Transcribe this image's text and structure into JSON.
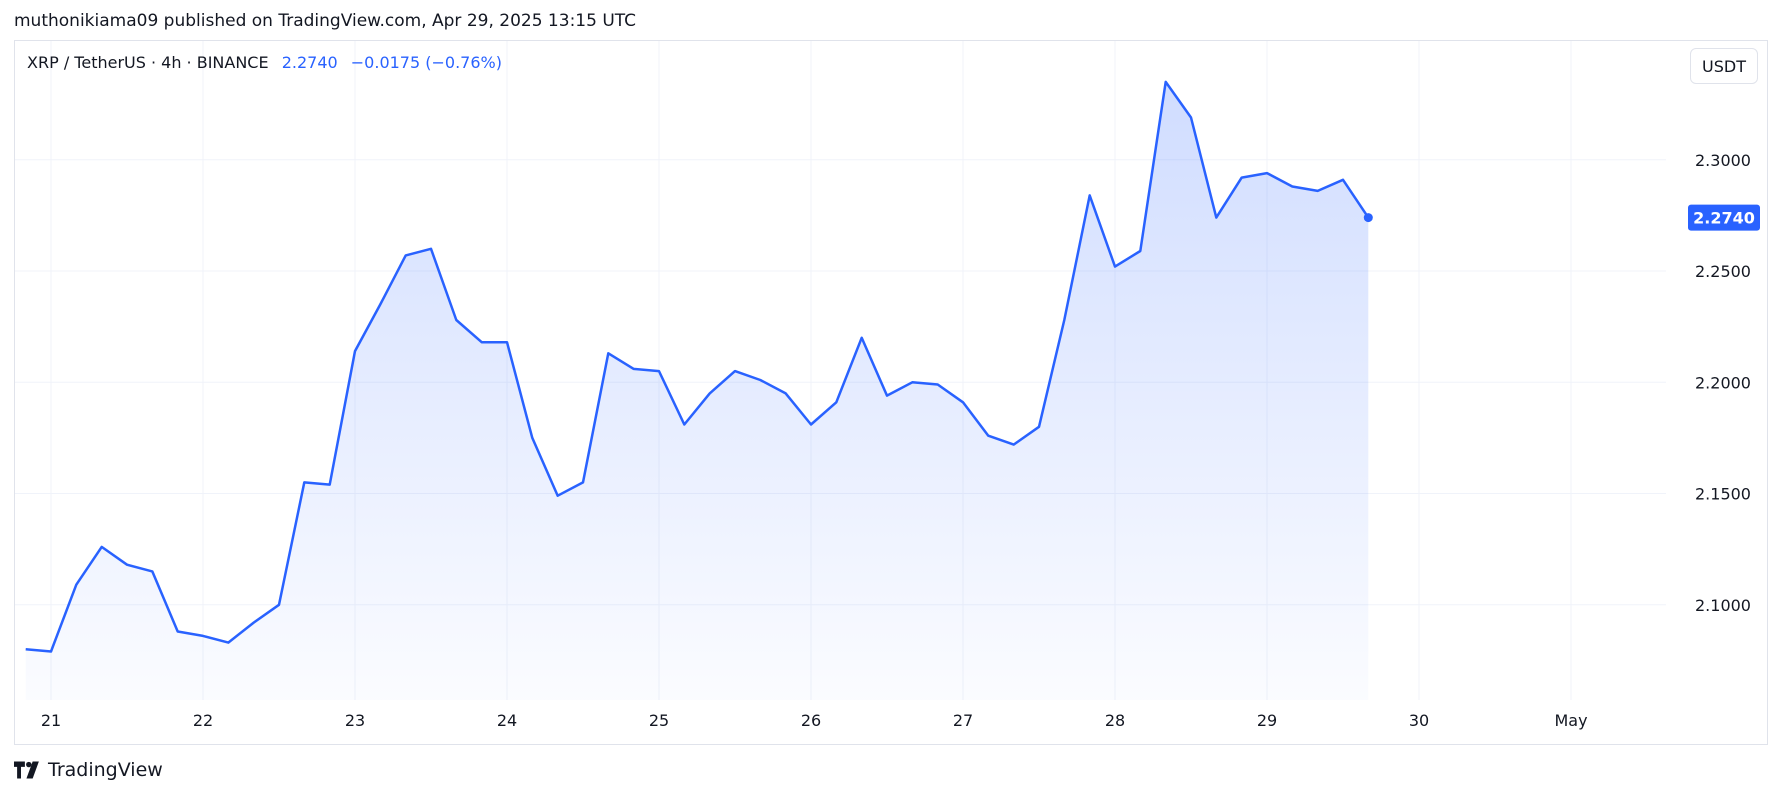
{
  "header": {
    "published": "muthonikiama09 published on TradingView.com, Apr 29, 2025 13:15 UTC"
  },
  "legend": {
    "symbol": "XRP / TetherUS · 4h · BINANCE",
    "price": "2.2740",
    "change": "−0.0175 (−0.76%)"
  },
  "unit_button": "USDT",
  "footer": {
    "brand": "TradingView"
  },
  "colors": {
    "line": "#2962ff",
    "grid": "#f0f3fa",
    "text": "#131722",
    "badge_bg": "#2962ff"
  },
  "chart_data": {
    "type": "area",
    "title": "",
    "xlabel": "",
    "ylabel": "",
    "x_start": "2025-04-20 20:00",
    "interval": "4h",
    "x_ticks": [
      {
        "label": "21",
        "date": "2025-04-21"
      },
      {
        "label": "22",
        "date": "2025-04-22"
      },
      {
        "label": "23",
        "date": "2025-04-23"
      },
      {
        "label": "24",
        "date": "2025-04-24"
      },
      {
        "label": "25",
        "date": "2025-04-25"
      },
      {
        "label": "26",
        "date": "2025-04-26"
      },
      {
        "label": "27",
        "date": "2025-04-27"
      },
      {
        "label": "28",
        "date": "2025-04-28"
      },
      {
        "label": "29",
        "date": "2025-04-29"
      },
      {
        "label": "30",
        "date": "2025-04-30"
      },
      {
        "label": "May",
        "date": "2025-05-01"
      }
    ],
    "y_ticks": [
      "2.1000",
      "2.1500",
      "2.2000",
      "2.2500",
      "2.3000"
    ],
    "ylim": [
      2.0572,
      2.3718
    ],
    "last_value_label": "2.2740",
    "grid": true,
    "series": [
      {
        "values": [
          2.08,
          2.079,
          2.109,
          2.126,
          2.118,
          2.115,
          2.088,
          2.086,
          2.083,
          2.092,
          2.1,
          2.155,
          2.154,
          2.214,
          2.235,
          2.257,
          2.26,
          2.228,
          2.218,
          2.218,
          2.175,
          2.149,
          2.155,
          2.213,
          2.206,
          2.205,
          2.181,
          2.195,
          2.205,
          2.201,
          2.195,
          2.181,
          2.191,
          2.22,
          2.194,
          2.2,
          2.199,
          2.191,
          2.176,
          2.172,
          2.18,
          2.228,
          2.284,
          2.252,
          2.259,
          2.335,
          2.319,
          2.274,
          2.292,
          2.294,
          2.288,
          2.286,
          2.291,
          2.274
        ]
      }
    ]
  }
}
